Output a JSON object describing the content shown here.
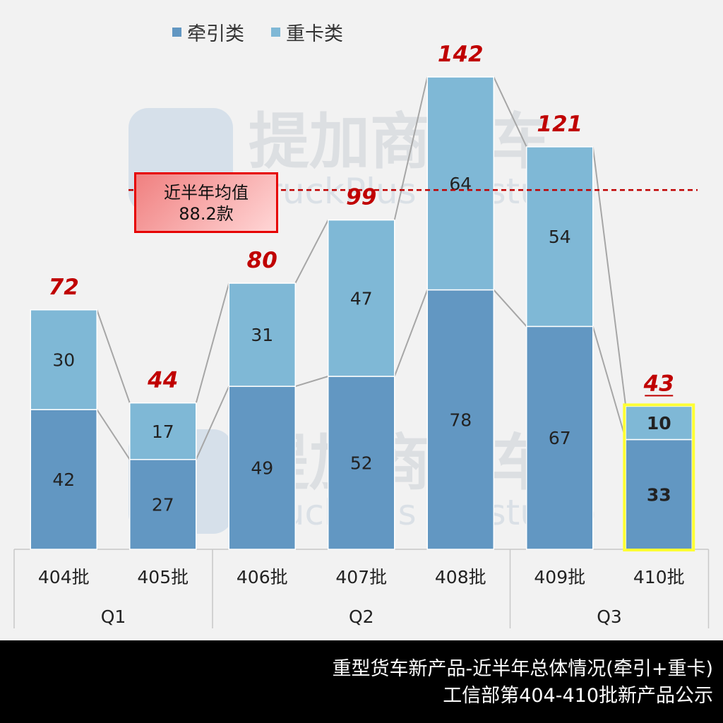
{
  "legend": {
    "items": [
      {
        "label": "牵引类",
        "color": "#6297c2"
      },
      {
        "label": "重卡类",
        "color": "#7fb8d6"
      }
    ]
  },
  "average_box": {
    "line1": "近半年均值",
    "line2": "88.2款"
  },
  "watermark": {
    "cn": "提加商用车",
    "en": "TruckPlus CV studio"
  },
  "chart_data": {
    "type": "bar",
    "stacked": true,
    "categories": [
      "404批",
      "405批",
      "406批",
      "407批",
      "408批",
      "409批",
      "410批"
    ],
    "groups": [
      {
        "label": "Q1",
        "categories": [
          "404批",
          "405批"
        ]
      },
      {
        "label": "Q2",
        "categories": [
          "406批",
          "407批",
          "408批"
        ]
      },
      {
        "label": "Q3",
        "categories": [
          "409批",
          "410批"
        ]
      }
    ],
    "series": [
      {
        "name": "牵引类",
        "values": [
          42,
          27,
          49,
          52,
          78,
          67,
          33
        ],
        "color": "#6297c2"
      },
      {
        "name": "重卡类",
        "values": [
          30,
          17,
          31,
          47,
          64,
          54,
          10
        ],
        "color": "#7fb8d6"
      }
    ],
    "totals": [
      72,
      44,
      80,
      99,
      142,
      121,
      43
    ],
    "ylim": [
      0,
      142
    ],
    "reference_line": {
      "value": 108,
      "color": "#c00000"
    },
    "highlight_category": "410批",
    "highlight_color": "#ffff33"
  },
  "footer": {
    "line1": "重型货车新产品-近半年总体情况(牵引+重卡)",
    "line2": "工信部第404-410批新产品公示"
  }
}
